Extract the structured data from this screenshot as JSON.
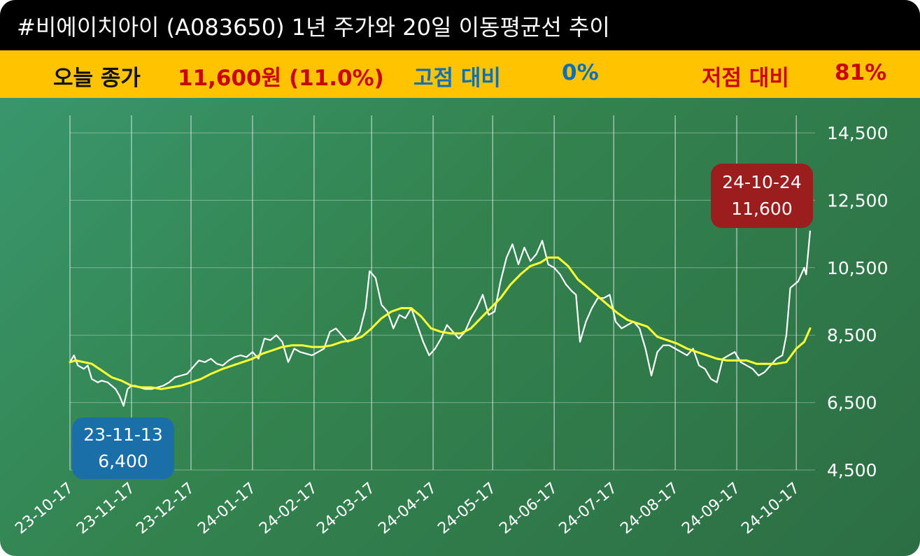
{
  "header": {
    "title": "#비에이치아이 (A083650) 1년 주가와 20일 이동평균선 추이"
  },
  "info_bar": {
    "close_label": "오늘 종가",
    "close_value": "11,600원 (11.0%)",
    "high_label": "고점 대비",
    "high_value": "0%",
    "low_label": "저점 대비",
    "low_value": "81%"
  },
  "colors": {
    "header_bg": "#000000",
    "info_bg": "#ffc300",
    "label_dark": "#111111",
    "value_red": "#cc0000",
    "value_blue": "#0d6fb8",
    "price_line": "#ffffff",
    "ma_line": "#ffff33",
    "low_callout": "#1a6fa8",
    "high_callout": "#9b1d1d"
  },
  "callouts": {
    "low": {
      "date": "23-11-13",
      "value": "6,400"
    },
    "high": {
      "date": "24-10-24",
      "value": "11,600"
    }
  },
  "chart_data": {
    "type": "line",
    "title": "",
    "xlabel": "",
    "ylabel": "",
    "ylim": [
      4500,
      14500
    ],
    "y_ticks": [
      4500,
      6500,
      8500,
      10500,
      12500,
      14500
    ],
    "y_tick_labels": [
      "4,500",
      "6,500",
      "8,500",
      "10,500",
      "12,500",
      "14,500"
    ],
    "x_range": [
      "2023-10-17",
      "2024-10-24"
    ],
    "x_ticks": [
      "2023-10-17",
      "2023-11-17",
      "2023-12-17",
      "2024-01-17",
      "2024-02-17",
      "2024-03-17",
      "2024-04-17",
      "2024-05-17",
      "2024-06-17",
      "2024-07-17",
      "2024-08-17",
      "2024-09-17",
      "2024-10-17"
    ],
    "x_tick_labels": [
      "23-10-17",
      "23-11-17",
      "23-12-17",
      "24-01-17",
      "24-02-17",
      "24-03-17",
      "24-04-17",
      "24-05-17",
      "24-06-17",
      "24-07-17",
      "24-08-17",
      "24-09-17",
      "24-10-17"
    ],
    "grid": "vertical",
    "series": [
      {
        "name": "",
        "role": "price",
        "points": [
          [
            "2023-10-17",
            7700
          ],
          [
            "2023-10-19",
            7900
          ],
          [
            "2023-10-21",
            7600
          ],
          [
            "2023-10-24",
            7500
          ],
          [
            "2023-10-26",
            7600
          ],
          [
            "2023-10-28",
            7200
          ],
          [
            "2023-10-31",
            7100
          ],
          [
            "2023-11-02",
            7150
          ],
          [
            "2023-11-05",
            7100
          ],
          [
            "2023-11-07",
            7000
          ],
          [
            "2023-11-09",
            6900
          ],
          [
            "2023-11-11",
            6700
          ],
          [
            "2023-11-13",
            6400
          ],
          [
            "2023-11-15",
            6900
          ],
          [
            "2023-11-17",
            7000
          ],
          [
            "2023-11-19",
            7000
          ],
          [
            "2023-11-21",
            6950
          ],
          [
            "2023-11-24",
            6900
          ],
          [
            "2023-11-27",
            6900
          ],
          [
            "2023-11-30",
            6950
          ],
          [
            "2023-12-03",
            7000
          ],
          [
            "2023-12-06",
            7100
          ],
          [
            "2023-12-09",
            7250
          ],
          [
            "2023-12-12",
            7300
          ],
          [
            "2023-12-15",
            7350
          ],
          [
            "2023-12-18",
            7550
          ],
          [
            "2023-12-21",
            7750
          ],
          [
            "2023-12-24",
            7700
          ],
          [
            "2023-12-27",
            7800
          ],
          [
            "2023-12-30",
            7650
          ],
          [
            "2024-01-02",
            7600
          ],
          [
            "2024-01-05",
            7750
          ],
          [
            "2024-01-08",
            7850
          ],
          [
            "2024-01-11",
            7900
          ],
          [
            "2024-01-14",
            7850
          ],
          [
            "2024-01-17",
            8000
          ],
          [
            "2024-01-20",
            7800
          ],
          [
            "2024-01-23",
            8400
          ],
          [
            "2024-01-26",
            8350
          ],
          [
            "2024-01-29",
            8500
          ],
          [
            "2024-02-01",
            8300
          ],
          [
            "2024-02-04",
            7700
          ],
          [
            "2024-02-07",
            8100
          ],
          [
            "2024-02-10",
            8000
          ],
          [
            "2024-02-13",
            7950
          ],
          [
            "2024-02-16",
            7900
          ],
          [
            "2024-02-19",
            8000
          ],
          [
            "2024-02-22",
            8100
          ],
          [
            "2024-02-25",
            8600
          ],
          [
            "2024-02-28",
            8700
          ],
          [
            "2024-03-02",
            8500
          ],
          [
            "2024-03-05",
            8300
          ],
          [
            "2024-03-08",
            8400
          ],
          [
            "2024-03-11",
            8600
          ],
          [
            "2024-03-14",
            9300
          ],
          [
            "2024-03-16",
            10400
          ],
          [
            "2024-03-19",
            10200
          ],
          [
            "2024-03-22",
            9400
          ],
          [
            "2024-03-25",
            9200
          ],
          [
            "2024-03-28",
            8700
          ],
          [
            "2024-03-31",
            9100
          ],
          [
            "2024-04-03",
            9000
          ],
          [
            "2024-04-06",
            9300
          ],
          [
            "2024-04-09",
            8800
          ],
          [
            "2024-04-12",
            8300
          ],
          [
            "2024-04-15",
            7900
          ],
          [
            "2024-04-18",
            8100
          ],
          [
            "2024-04-21",
            8400
          ],
          [
            "2024-04-24",
            8800
          ],
          [
            "2024-04-27",
            8600
          ],
          [
            "2024-04-30",
            8400
          ],
          [
            "2024-05-03",
            8600
          ],
          [
            "2024-05-06",
            9000
          ],
          [
            "2024-05-09",
            9300
          ],
          [
            "2024-05-12",
            9700
          ],
          [
            "2024-05-15",
            9100
          ],
          [
            "2024-05-18",
            9200
          ],
          [
            "2024-05-21",
            10100
          ],
          [
            "2024-05-24",
            10800
          ],
          [
            "2024-05-27",
            11200
          ],
          [
            "2024-05-30",
            10600
          ],
          [
            "2024-06-02",
            11100
          ],
          [
            "2024-06-05",
            10700
          ],
          [
            "2024-06-08",
            10900
          ],
          [
            "2024-06-11",
            11300
          ],
          [
            "2024-06-14",
            10600
          ],
          [
            "2024-06-17",
            10500
          ],
          [
            "2024-06-20",
            10300
          ],
          [
            "2024-06-23",
            10000
          ],
          [
            "2024-06-26",
            9800
          ],
          [
            "2024-06-28",
            9700
          ],
          [
            "2024-06-30",
            8300
          ],
          [
            "2024-07-03",
            8900
          ],
          [
            "2024-07-06",
            9300
          ],
          [
            "2024-07-09",
            9600
          ],
          [
            "2024-07-12",
            9600
          ],
          [
            "2024-07-15",
            9700
          ],
          [
            "2024-07-18",
            8900
          ],
          [
            "2024-07-21",
            8700
          ],
          [
            "2024-07-24",
            8800
          ],
          [
            "2024-07-27",
            8900
          ],
          [
            "2024-07-30",
            8700
          ],
          [
            "2024-08-02",
            8100
          ],
          [
            "2024-08-05",
            7300
          ],
          [
            "2024-08-08",
            8000
          ],
          [
            "2024-08-11",
            8200
          ],
          [
            "2024-08-14",
            8200
          ],
          [
            "2024-08-17",
            8100
          ],
          [
            "2024-08-20",
            8000
          ],
          [
            "2024-08-23",
            7900
          ],
          [
            "2024-08-26",
            8100
          ],
          [
            "2024-08-29",
            7600
          ],
          [
            "2024-09-01",
            7500
          ],
          [
            "2024-09-04",
            7200
          ],
          [
            "2024-09-07",
            7100
          ],
          [
            "2024-09-10",
            7800
          ],
          [
            "2024-09-13",
            7900
          ],
          [
            "2024-09-16",
            8000
          ],
          [
            "2024-09-19",
            7700
          ],
          [
            "2024-09-22",
            7600
          ],
          [
            "2024-09-25",
            7500
          ],
          [
            "2024-09-28",
            7300
          ],
          [
            "2024-10-01",
            7400
          ],
          [
            "2024-10-04",
            7600
          ],
          [
            "2024-10-07",
            7800
          ],
          [
            "2024-10-10",
            7900
          ],
          [
            "2024-10-12",
            8500
          ],
          [
            "2024-10-14",
            9900
          ],
          [
            "2024-10-16",
            10000
          ],
          [
            "2024-10-18",
            10100
          ],
          [
            "2024-10-21",
            10500
          ],
          [
            "2024-10-22",
            10300
          ],
          [
            "2024-10-24",
            11600
          ]
        ]
      },
      {
        "name": "",
        "role": "ma20",
        "points": [
          [
            "2023-10-17",
            7700
          ],
          [
            "2023-10-20",
            7750
          ],
          [
            "2023-10-24",
            7700
          ],
          [
            "2023-10-28",
            7650
          ],
          [
            "2023-11-02",
            7450
          ],
          [
            "2023-11-07",
            7250
          ],
          [
            "2023-11-12",
            7150
          ],
          [
            "2023-11-17",
            7000
          ],
          [
            "2023-11-22",
            6950
          ],
          [
            "2023-11-27",
            6950
          ],
          [
            "2023-12-02",
            6900
          ],
          [
            "2023-12-07",
            6950
          ],
          [
            "2023-12-12",
            7000
          ],
          [
            "2023-12-17",
            7100
          ],
          [
            "2023-12-22",
            7200
          ],
          [
            "2023-12-27",
            7350
          ],
          [
            "2024-01-02",
            7500
          ],
          [
            "2024-01-07",
            7600
          ],
          [
            "2024-01-12",
            7700
          ],
          [
            "2024-01-17",
            7800
          ],
          [
            "2024-01-22",
            7950
          ],
          [
            "2024-01-27",
            8050
          ],
          [
            "2024-02-01",
            8150
          ],
          [
            "2024-02-06",
            8200
          ],
          [
            "2024-02-11",
            8200
          ],
          [
            "2024-02-16",
            8150
          ],
          [
            "2024-02-21",
            8150
          ],
          [
            "2024-02-26",
            8200
          ],
          [
            "2024-03-02",
            8300
          ],
          [
            "2024-03-07",
            8350
          ],
          [
            "2024-03-12",
            8450
          ],
          [
            "2024-03-17",
            8700
          ],
          [
            "2024-03-22",
            9000
          ],
          [
            "2024-03-27",
            9200
          ],
          [
            "2024-04-01",
            9300
          ],
          [
            "2024-04-06",
            9300
          ],
          [
            "2024-04-11",
            9050
          ],
          [
            "2024-04-16",
            8700
          ],
          [
            "2024-04-21",
            8600
          ],
          [
            "2024-04-26",
            8550
          ],
          [
            "2024-05-01",
            8550
          ],
          [
            "2024-05-06",
            8700
          ],
          [
            "2024-05-11",
            9000
          ],
          [
            "2024-05-16",
            9300
          ],
          [
            "2024-05-21",
            9600
          ],
          [
            "2024-05-26",
            10000
          ],
          [
            "2024-05-31",
            10300
          ],
          [
            "2024-06-05",
            10550
          ],
          [
            "2024-06-10",
            10650
          ],
          [
            "2024-06-14",
            10800
          ],
          [
            "2024-06-19",
            10800
          ],
          [
            "2024-06-24",
            10550
          ],
          [
            "2024-06-29",
            10150
          ],
          [
            "2024-07-04",
            9900
          ],
          [
            "2024-07-09",
            9650
          ],
          [
            "2024-07-14",
            9400
          ],
          [
            "2024-07-19",
            9150
          ],
          [
            "2024-07-24",
            8950
          ],
          [
            "2024-07-29",
            8850
          ],
          [
            "2024-08-03",
            8750
          ],
          [
            "2024-08-08",
            8450
          ],
          [
            "2024-08-13",
            8350
          ],
          [
            "2024-08-18",
            8250
          ],
          [
            "2024-08-23",
            8100
          ],
          [
            "2024-08-28",
            8000
          ],
          [
            "2024-09-02",
            7900
          ],
          [
            "2024-09-07",
            7800
          ],
          [
            "2024-09-12",
            7750
          ],
          [
            "2024-09-17",
            7750
          ],
          [
            "2024-09-22",
            7750
          ],
          [
            "2024-09-27",
            7650
          ],
          [
            "2024-10-02",
            7650
          ],
          [
            "2024-10-07",
            7650
          ],
          [
            "2024-10-12",
            7700
          ],
          [
            "2024-10-17",
            8100
          ],
          [
            "2024-10-21",
            8300
          ],
          [
            "2024-10-24",
            8700
          ]
        ]
      }
    ]
  }
}
